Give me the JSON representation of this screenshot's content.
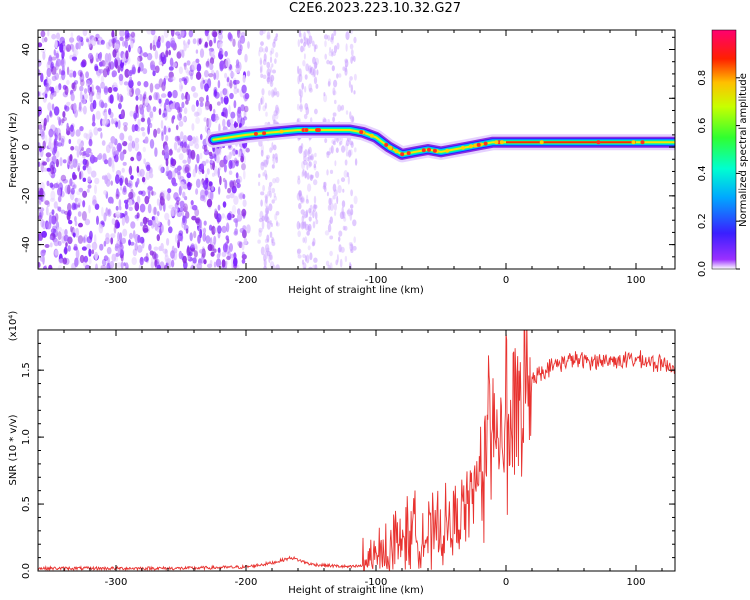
{
  "title": "C2E6.2023.223.10.32.G27",
  "chart_data": [
    {
      "type": "heatmap",
      "xlabel": "Height of straight line (km)",
      "ylabel": "Frequency (Hz)",
      "xlim": [
        -360,
        130
      ],
      "ylim": [
        -50,
        48
      ],
      "xticks": [
        -300,
        -200,
        -100,
        0,
        100
      ],
      "yticks": [
        -40,
        -20,
        0,
        20,
        40
      ],
      "colorbar": {
        "label": "Normalized spectral amplitude",
        "range": [
          0,
          1
        ],
        "ticks": [
          "0.0",
          "0.2",
          "0.4",
          "0.6",
          "0.8"
        ]
      },
      "ridge": {
        "x": [
          -225,
          -200,
          -180,
          -160,
          -140,
          -120,
          -110,
          -100,
          -90,
          -80,
          -70,
          -60,
          -50,
          -40,
          -30,
          -20,
          -10,
          0,
          50,
          100,
          130
        ],
        "freq": [
          3,
          5,
          6,
          7,
          7,
          7,
          6,
          4,
          0,
          -3,
          -2,
          -1,
          -2,
          -1,
          0,
          1,
          2,
          2,
          2,
          2,
          2
        ]
      }
    },
    {
      "type": "line",
      "xlabel": "Height of straight line (km)",
      "ylabel": "SNR (10 * v/v)",
      "y_multiplier": "(x10⁴)",
      "xlim": [
        -360,
        130
      ],
      "ylim": [
        0,
        1.8
      ],
      "xticks": [
        -300,
        -200,
        -100,
        0,
        100
      ],
      "yticks": [
        "0.0",
        "0.5",
        "1.0",
        "1.5"
      ],
      "series": [
        {
          "color": "#e8322f",
          "x": [
            -360,
            -300,
            -250,
            -200,
            -180,
            -165,
            -150,
            -120,
            -100,
            -90,
            -80,
            -70,
            -60,
            -50,
            -40,
            -30,
            -20,
            -15,
            -10,
            -5,
            0,
            5,
            10,
            20,
            30,
            40,
            50,
            60,
            80,
            100,
            110,
            120,
            130
          ],
          "y": [
            0.02,
            0.02,
            0.02,
            0.03,
            0.06,
            0.1,
            0.05,
            0.03,
            0.05,
            0.15,
            0.25,
            0.3,
            0.25,
            0.3,
            0.35,
            0.5,
            0.7,
            0.9,
            1.1,
            1.2,
            1.0,
            1.1,
            1.3,
            1.45,
            1.5,
            1.55,
            1.58,
            1.57,
            1.57,
            1.58,
            1.56,
            1.54,
            1.53
          ]
        }
      ]
    }
  ]
}
